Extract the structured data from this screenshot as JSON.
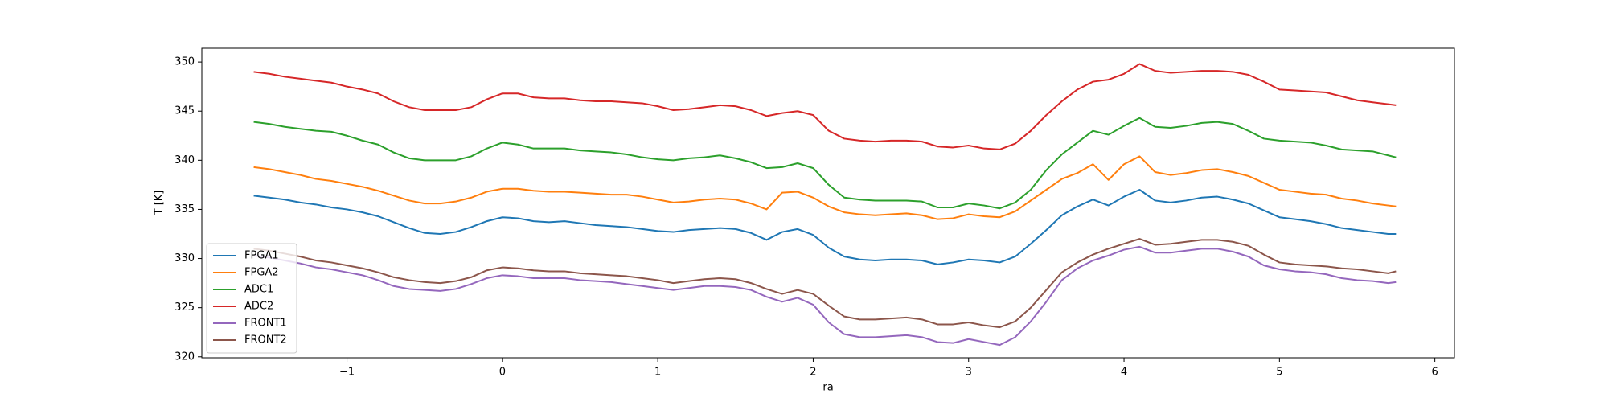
{
  "chart_data": {
    "type": "line",
    "x_label": "ra",
    "y_label": "T [K]",
    "x": [
      -1.6,
      -1.5,
      -1.4,
      -1.3,
      -1.2,
      -1.1,
      -1.0,
      -0.9,
      -0.8,
      -0.7,
      -0.6,
      -0.5,
      -0.4,
      -0.3,
      -0.2,
      -0.1,
      0.0,
      0.1,
      0.2,
      0.3,
      0.4,
      0.5,
      0.6,
      0.7,
      0.8,
      0.9,
      1.0,
      1.1,
      1.2,
      1.3,
      1.4,
      1.5,
      1.6,
      1.7,
      1.8,
      1.9,
      2.0,
      2.1,
      2.2,
      2.3,
      2.4,
      2.5,
      2.6,
      2.7,
      2.8,
      2.9,
      3.0,
      3.1,
      3.2,
      3.3,
      3.4,
      3.5,
      3.6,
      3.7,
      3.8,
      3.9,
      4.0,
      4.1,
      4.2,
      4.3,
      4.4,
      4.5,
      4.6,
      4.7,
      4.8,
      4.9,
      5.0,
      5.1,
      5.2,
      5.3,
      5.4,
      5.5,
      5.6,
      5.7,
      5.75
    ],
    "series": [
      {
        "name": "FPGA1",
        "color": "#1f77b4",
        "values": [
          336.4,
          336.2,
          336.0,
          335.7,
          335.5,
          335.2,
          335.0,
          334.7,
          334.3,
          333.7,
          333.1,
          332.6,
          332.5,
          332.7,
          333.2,
          333.8,
          334.2,
          334.1,
          333.8,
          333.7,
          333.8,
          333.6,
          333.4,
          333.3,
          333.2,
          333.0,
          332.8,
          332.7,
          332.9,
          333.0,
          333.1,
          333.0,
          332.6,
          331.9,
          332.7,
          333.0,
          332.4,
          331.1,
          330.2,
          329.9,
          329.8,
          329.9,
          329.9,
          329.8,
          329.4,
          329.6,
          329.9,
          329.8,
          329.6,
          330.2,
          331.5,
          332.9,
          334.4,
          335.3,
          336.0,
          335.4,
          336.3,
          337.0,
          335.9,
          335.7,
          335.9,
          336.2,
          336.3,
          336.0,
          335.6,
          334.9,
          334.2,
          334.0,
          333.8,
          333.5,
          333.1,
          332.9,
          332.7,
          332.5,
          332.5
        ]
      },
      {
        "name": "FPGA2",
        "color": "#ff7f0e",
        "values": [
          339.3,
          339.1,
          338.8,
          338.5,
          338.1,
          337.9,
          337.6,
          337.3,
          336.9,
          336.4,
          335.9,
          335.6,
          335.6,
          335.8,
          336.2,
          336.8,
          337.1,
          337.1,
          336.9,
          336.8,
          336.8,
          336.7,
          336.6,
          336.5,
          336.5,
          336.3,
          336.0,
          335.7,
          335.8,
          336.0,
          336.1,
          336.0,
          335.6,
          335.0,
          336.7,
          336.8,
          336.2,
          335.3,
          334.7,
          334.5,
          334.4,
          334.5,
          334.6,
          334.4,
          334.0,
          334.1,
          334.5,
          334.3,
          334.2,
          334.8,
          335.9,
          337.0,
          338.1,
          338.7,
          339.6,
          338.0,
          339.6,
          340.4,
          338.8,
          338.5,
          338.7,
          339.0,
          339.1,
          338.8,
          338.4,
          337.7,
          337.0,
          336.8,
          336.6,
          336.5,
          336.1,
          335.9,
          335.6,
          335.4,
          335.3
        ]
      },
      {
        "name": "ADC1",
        "color": "#2ca02c",
        "values": [
          343.9,
          343.7,
          343.4,
          343.2,
          343.0,
          342.9,
          342.5,
          342.0,
          341.6,
          340.8,
          340.2,
          340.0,
          340.0,
          340.0,
          340.4,
          341.2,
          341.8,
          341.6,
          341.2,
          341.2,
          341.2,
          341.0,
          340.9,
          340.8,
          340.6,
          340.3,
          340.1,
          340.0,
          340.2,
          340.3,
          340.5,
          340.2,
          339.8,
          339.2,
          339.3,
          339.7,
          339.2,
          337.5,
          336.2,
          336.0,
          335.9,
          335.9,
          335.9,
          335.8,
          335.2,
          335.2,
          335.6,
          335.4,
          335.1,
          335.7,
          337.0,
          339.0,
          340.6,
          341.8,
          343.0,
          342.6,
          343.5,
          344.3,
          343.4,
          343.3,
          343.5,
          343.8,
          343.9,
          343.7,
          343.0,
          342.2,
          342.0,
          341.9,
          341.8,
          341.5,
          341.1,
          341.0,
          340.9,
          340.5,
          340.3
        ]
      },
      {
        "name": "ADC2",
        "color": "#d62728",
        "values": [
          349.0,
          348.8,
          348.5,
          348.3,
          348.1,
          347.9,
          347.5,
          347.2,
          346.8,
          346.0,
          345.4,
          345.1,
          345.1,
          345.1,
          345.4,
          346.2,
          346.8,
          346.8,
          346.4,
          346.3,
          346.3,
          346.1,
          346.0,
          346.0,
          345.9,
          345.8,
          345.5,
          345.1,
          345.2,
          345.4,
          345.6,
          345.5,
          345.1,
          344.5,
          344.8,
          345.0,
          344.6,
          343.0,
          342.2,
          342.0,
          341.9,
          342.0,
          342.0,
          341.9,
          341.4,
          341.3,
          341.5,
          341.2,
          341.1,
          341.7,
          343.0,
          344.6,
          346.0,
          347.2,
          348.0,
          348.2,
          348.8,
          349.8,
          349.1,
          348.9,
          349.0,
          349.1,
          349.1,
          349.0,
          348.7,
          348.0,
          347.2,
          347.1,
          347.0,
          346.9,
          346.5,
          346.1,
          345.9,
          345.7,
          345.6
        ]
      },
      {
        "name": "FRONT1",
        "color": "#9467bd",
        "values": [
          330.3,
          330.1,
          329.8,
          329.5,
          329.1,
          328.9,
          328.6,
          328.3,
          327.8,
          327.2,
          326.9,
          326.8,
          326.7,
          326.9,
          327.4,
          328.0,
          328.3,
          328.2,
          328.0,
          328.0,
          328.0,
          327.8,
          327.7,
          327.6,
          327.4,
          327.2,
          327.0,
          326.8,
          327.0,
          327.2,
          327.2,
          327.1,
          326.8,
          326.1,
          325.6,
          326.0,
          325.3,
          323.5,
          322.3,
          322.0,
          322.0,
          322.1,
          322.2,
          322.0,
          321.5,
          321.4,
          321.8,
          321.5,
          321.2,
          322.0,
          323.6,
          325.6,
          327.8,
          329.0,
          329.8,
          330.3,
          330.9,
          331.2,
          330.6,
          330.6,
          330.8,
          331.0,
          331.0,
          330.7,
          330.2,
          329.3,
          328.9,
          328.7,
          328.6,
          328.4,
          328.0,
          327.8,
          327.7,
          327.5,
          327.6
        ]
      },
      {
        "name": "FRONT2",
        "color": "#8c564b",
        "values": [
          331.0,
          330.8,
          330.5,
          330.2,
          329.8,
          329.6,
          329.3,
          329.0,
          328.6,
          328.1,
          327.8,
          327.6,
          327.5,
          327.7,
          328.1,
          328.8,
          329.1,
          329.0,
          328.8,
          328.7,
          328.7,
          328.5,
          328.4,
          328.3,
          328.2,
          328.0,
          327.8,
          327.5,
          327.7,
          327.9,
          328.0,
          327.9,
          327.5,
          326.9,
          326.4,
          326.8,
          326.4,
          325.2,
          324.1,
          323.8,
          323.8,
          323.9,
          324.0,
          323.8,
          323.3,
          323.3,
          323.5,
          323.2,
          323.0,
          323.6,
          325.0,
          326.8,
          328.6,
          329.6,
          330.4,
          331.0,
          331.5,
          332.0,
          331.4,
          331.5,
          331.7,
          331.9,
          331.9,
          331.7,
          331.3,
          330.4,
          329.6,
          329.4,
          329.3,
          329.2,
          329.0,
          328.9,
          328.7,
          328.5,
          328.7
        ]
      }
    ],
    "xlim": [
      -1.934,
      6.126
    ],
    "xticks": [
      {
        "value": -1,
        "label": "−1"
      },
      0,
      1,
      2,
      3,
      4,
      5,
      6
    ],
    "ylim": [
      319.9,
      351.4
    ],
    "yticks": [
      320,
      325,
      330,
      335,
      340,
      345,
      350
    ],
    "legend": "lower left",
    "grid": false
  }
}
